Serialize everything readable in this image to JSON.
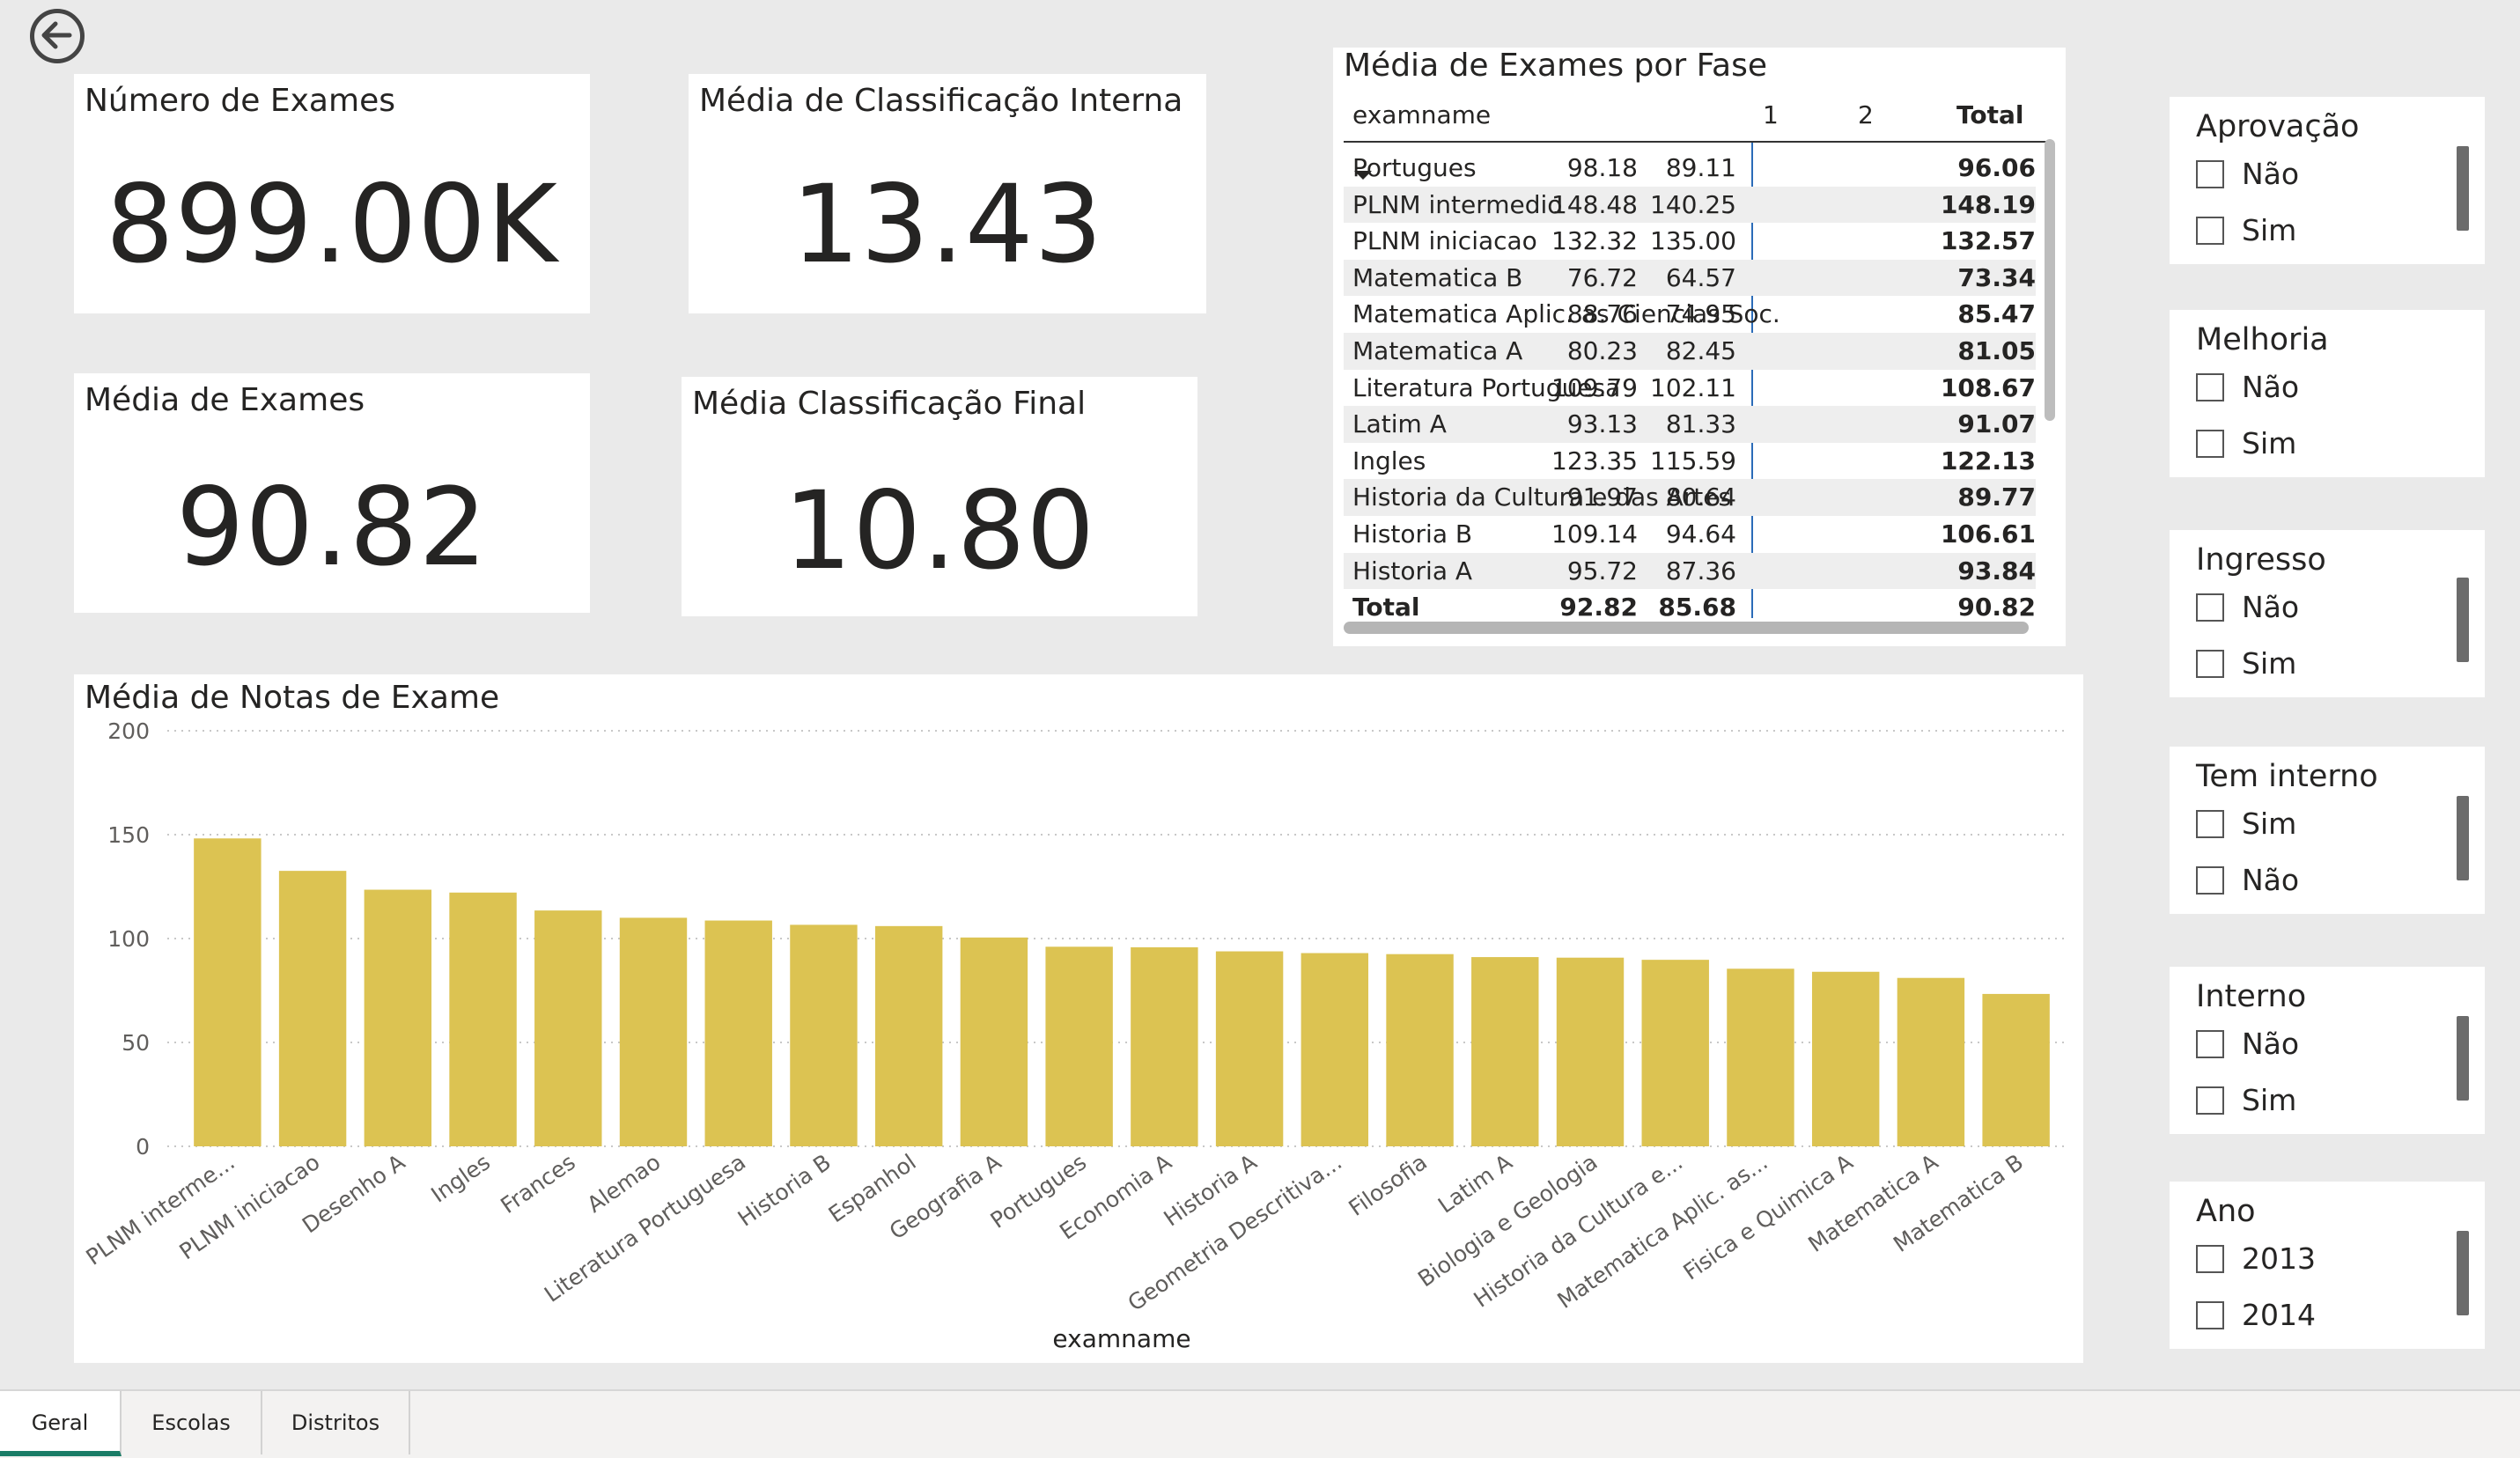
{
  "kpis": {
    "numero_exames": {
      "title": "Número de Exames",
      "value": "899.00K"
    },
    "media_class_interna": {
      "title": "Média de Classificação Interna",
      "value": "13.43"
    },
    "media_exames": {
      "title": "Média de Exames",
      "value": "90.82"
    },
    "media_class_final": {
      "title": "Média Classificação Final",
      "value": "10.80"
    }
  },
  "matrix": {
    "title": "Média de Exames por Fase",
    "headers": {
      "name": "examname",
      "c1": "1",
      "c2": "2",
      "total": "Total"
    },
    "rows": [
      {
        "name": "Portugues",
        "c1": "98.18",
        "c2": "89.11",
        "total": "96.06"
      },
      {
        "name": "PLNM intermedio",
        "c1": "148.48",
        "c2": "140.25",
        "total": "148.19"
      },
      {
        "name": "PLNM iniciacao",
        "c1": "132.32",
        "c2": "135.00",
        "total": "132.57"
      },
      {
        "name": "Matematica B",
        "c1": "76.72",
        "c2": "64.57",
        "total": "73.34"
      },
      {
        "name": "Matematica Aplic. as Ciencias Soc.",
        "c1": "88.76",
        "c2": "74.95",
        "total": "85.47"
      },
      {
        "name": "Matematica A",
        "c1": "80.23",
        "c2": "82.45",
        "total": "81.05"
      },
      {
        "name": "Literatura Portuguesa",
        "c1": "109.79",
        "c2": "102.11",
        "total": "108.67"
      },
      {
        "name": "Latim A",
        "c1": "93.13",
        "c2": "81.33",
        "total": "91.07"
      },
      {
        "name": "Ingles",
        "c1": "123.35",
        "c2": "115.59",
        "total": "122.13"
      },
      {
        "name": "Historia da Cultura e das Artes",
        "c1": "91.97",
        "c2": "80.64",
        "total": "89.77"
      },
      {
        "name": "Historia B",
        "c1": "109.14",
        "c2": "94.64",
        "total": "106.61"
      },
      {
        "name": "Historia A",
        "c1": "95.72",
        "c2": "87.36",
        "total": "93.84"
      }
    ],
    "total_row": {
      "name": "Total",
      "c1": "92.82",
      "c2": "85.68",
      "total": "90.82"
    }
  },
  "chart_title": "Média de Notas de Exame",
  "chart_data": {
    "type": "bar",
    "title": "Média de Notas de Exame",
    "xlabel": "examname",
    "ylabel": "",
    "ylim": [
      0,
      200
    ],
    "yticks": [
      0,
      50,
      100,
      150,
      200
    ],
    "grid": true,
    "bar_color": "#dcc352",
    "categories": [
      "PLNM interme...",
      "PLNM iniciacao",
      "Desenho A",
      "Ingles",
      "Frances",
      "Alemao",
      "Literatura Portuguesa",
      "Historia B",
      "Espanhol",
      "Geografia A",
      "Portugues",
      "Economia A",
      "Historia A",
      "Geometria Descritiva...",
      "Filosofia",
      "Latim A",
      "Biologia e Geologia",
      "Historia da Cultura e...",
      "Matematica Aplic. as...",
      "Fisica e Quimica A",
      "Matematica A",
      "Matematica B"
    ],
    "values": [
      148.19,
      132.57,
      123.5,
      122.13,
      113.5,
      110.0,
      108.67,
      106.61,
      106.0,
      100.5,
      96.06,
      95.8,
      93.84,
      93.0,
      92.5,
      91.07,
      90.8,
      89.77,
      85.47,
      84.0,
      81.05,
      73.34
    ]
  },
  "slicers": [
    {
      "title": "Aprovação",
      "items": [
        "Não",
        "Sim"
      ]
    },
    {
      "title": "Melhoria",
      "items": [
        "Não",
        "Sim"
      ]
    },
    {
      "title": "Ingresso",
      "items": [
        "Não",
        "Sim"
      ]
    },
    {
      "title": "Tem interno",
      "items": [
        "Sim",
        "Não"
      ]
    },
    {
      "title": "Interno",
      "items": [
        "Não",
        "Sim"
      ]
    },
    {
      "title": "Ano",
      "items": [
        "2013",
        "2014"
      ]
    }
  ],
  "tabs": [
    "Geral",
    "Escolas",
    "Distritos"
  ],
  "active_tab": "Geral",
  "icons": {
    "back": "back-arrow-icon",
    "sort": "sort-descending-icon"
  }
}
